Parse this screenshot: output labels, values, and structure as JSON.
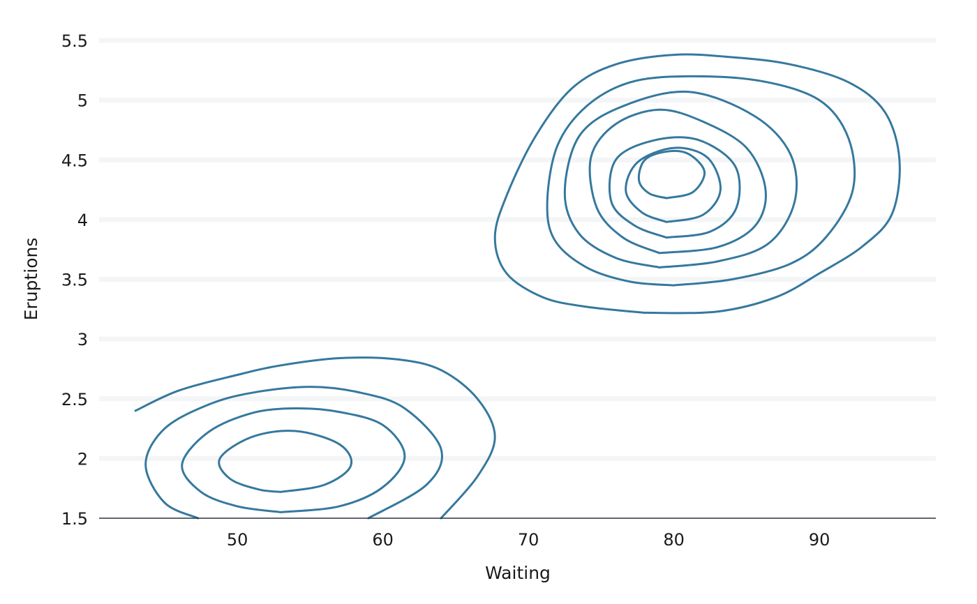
{
  "chart_data": {
    "type": "contour",
    "title": "",
    "xlabel": "Waiting",
    "ylabel": "Eruptions",
    "xlim": [
      40.5,
      98
    ],
    "ylim": [
      1.5,
      5.5
    ],
    "x_ticks": [
      {
        "value": 50,
        "label": "50"
      },
      {
        "value": 60,
        "label": "60"
      },
      {
        "value": 70,
        "label": "70"
      },
      {
        "value": 80,
        "label": "80"
      },
      {
        "value": 90,
        "label": "90"
      }
    ],
    "y_ticks": [
      {
        "value": 1.5,
        "label": "1.5"
      },
      {
        "value": 2,
        "label": "2"
      },
      {
        "value": 2.5,
        "label": "2.5"
      },
      {
        "value": 3,
        "label": "3"
      },
      {
        "value": 3.5,
        "label": "3.5"
      },
      {
        "value": 4,
        "label": "4"
      },
      {
        "value": 4.5,
        "label": "4.5"
      },
      {
        "value": 5,
        "label": "5"
      },
      {
        "value": 5.5,
        "label": "5.5"
      }
    ],
    "grid": "horizontal",
    "line_color": "#35789e",
    "contours": [
      {
        "points": [
          [
            43,
            2.4
          ],
          [
            46,
            2.57
          ],
          [
            50,
            2.7
          ],
          [
            53,
            2.78
          ],
          [
            57,
            2.84
          ],
          [
            61,
            2.83
          ],
          [
            64,
            2.74
          ],
          [
            66.5,
            2.5
          ],
          [
            67.7,
            2.18
          ],
          [
            66.5,
            1.85
          ],
          [
            64,
            1.5
          ]
        ]
      },
      {
        "points": [
          [
            47.3,
            1.5
          ],
          [
            45,
            1.63
          ],
          [
            43.7,
            1.95
          ],
          [
            45,
            2.25
          ],
          [
            48,
            2.45
          ],
          [
            51,
            2.55
          ],
          [
            55,
            2.6
          ],
          [
            58.5,
            2.55
          ],
          [
            61.5,
            2.42
          ],
          [
            64,
            2.08
          ],
          [
            63,
            1.78
          ],
          [
            59,
            1.5
          ]
        ]
      },
      {
        "points": [
          [
            53,
            1.55
          ],
          [
            57,
            1.6
          ],
          [
            60,
            1.76
          ],
          [
            61.5,
            2.02
          ],
          [
            60,
            2.28
          ],
          [
            57,
            2.39
          ],
          [
            54,
            2.42
          ],
          [
            51,
            2.38
          ],
          [
            48,
            2.22
          ],
          [
            46.2,
            1.95
          ],
          [
            47.5,
            1.72
          ],
          [
            50,
            1.6
          ],
          [
            53,
            1.55
          ]
        ]
      },
      {
        "points": [
          [
            53,
            1.72
          ],
          [
            56,
            1.78
          ],
          [
            57.8,
            1.94
          ],
          [
            57,
            2.12
          ],
          [
            54,
            2.23
          ],
          [
            51,
            2.18
          ],
          [
            48.8,
            2.0
          ],
          [
            49.5,
            1.83
          ],
          [
            51.5,
            1.74
          ],
          [
            53,
            1.72
          ]
        ]
      },
      {
        "points": [
          [
            78,
            3.22
          ],
          [
            83,
            3.23
          ],
          [
            87,
            3.35
          ],
          [
            90,
            3.55
          ],
          [
            93,
            3.78
          ],
          [
            95,
            4.05
          ],
          [
            95.5,
            4.5
          ],
          [
            94.5,
            4.9
          ],
          [
            92,
            5.15
          ],
          [
            88,
            5.3
          ],
          [
            84,
            5.36
          ],
          [
            80,
            5.38
          ],
          [
            76,
            5.3
          ],
          [
            73,
            5.1
          ],
          [
            70.5,
            4.7
          ],
          [
            68.5,
            4.2
          ],
          [
            67.7,
            3.85
          ],
          [
            68.5,
            3.55
          ],
          [
            71,
            3.35
          ],
          [
            74,
            3.27
          ],
          [
            78,
            3.22
          ]
        ]
      },
      {
        "points": [
          [
            80,
            3.45
          ],
          [
            84,
            3.5
          ],
          [
            88,
            3.63
          ],
          [
            90.5,
            3.86
          ],
          [
            92.3,
            4.25
          ],
          [
            92,
            4.68
          ],
          [
            90,
            5.0
          ],
          [
            86,
            5.16
          ],
          [
            81,
            5.2
          ],
          [
            77,
            5.15
          ],
          [
            74,
            4.95
          ],
          [
            72,
            4.62
          ],
          [
            71.3,
            4.15
          ],
          [
            71.8,
            3.83
          ],
          [
            74,
            3.6
          ],
          [
            77,
            3.48
          ],
          [
            80,
            3.45
          ]
        ]
      },
      {
        "points": [
          [
            79,
            3.6
          ],
          [
            83,
            3.65
          ],
          [
            86.5,
            3.8
          ],
          [
            88.3,
            4.15
          ],
          [
            88,
            4.55
          ],
          [
            85.5,
            4.87
          ],
          [
            81,
            5.07
          ],
          [
            76.5,
            4.95
          ],
          [
            73.5,
            4.7
          ],
          [
            72.5,
            4.22
          ],
          [
            73.5,
            3.88
          ],
          [
            76,
            3.68
          ],
          [
            79,
            3.6
          ]
        ]
      },
      {
        "points": [
          [
            79,
            3.72
          ],
          [
            83,
            3.77
          ],
          [
            85.6,
            3.95
          ],
          [
            86.3,
            4.25
          ],
          [
            85,
            4.6
          ],
          [
            82,
            4.82
          ],
          [
            79,
            4.92
          ],
          [
            76,
            4.8
          ],
          [
            74.3,
            4.52
          ],
          [
            74.7,
            4.1
          ],
          [
            76.5,
            3.85
          ],
          [
            79,
            3.72
          ]
        ]
      },
      {
        "points": [
          [
            79.5,
            3.85
          ],
          [
            82.5,
            3.9
          ],
          [
            84.3,
            4.1
          ],
          [
            84.2,
            4.45
          ],
          [
            81.6,
            4.67
          ],
          [
            78.5,
            4.66
          ],
          [
            76,
            4.5
          ],
          [
            75.7,
            4.15
          ],
          [
            77.3,
            3.95
          ],
          [
            79.5,
            3.85
          ]
        ]
      },
      {
        "points": [
          [
            79.5,
            3.98
          ],
          [
            82,
            4.04
          ],
          [
            83.2,
            4.25
          ],
          [
            82.3,
            4.52
          ],
          [
            80,
            4.6
          ],
          [
            77.5,
            4.48
          ],
          [
            76.7,
            4.24
          ],
          [
            77.8,
            4.06
          ],
          [
            79.5,
            3.98
          ]
        ]
      },
      {
        "points": [
          [
            79.5,
            4.18
          ],
          [
            81.3,
            4.23
          ],
          [
            82.1,
            4.4
          ],
          [
            81,
            4.55
          ],
          [
            79.5,
            4.57
          ],
          [
            78,
            4.5
          ],
          [
            77.6,
            4.33
          ],
          [
            78.3,
            4.22
          ],
          [
            79.5,
            4.18
          ]
        ]
      }
    ]
  }
}
